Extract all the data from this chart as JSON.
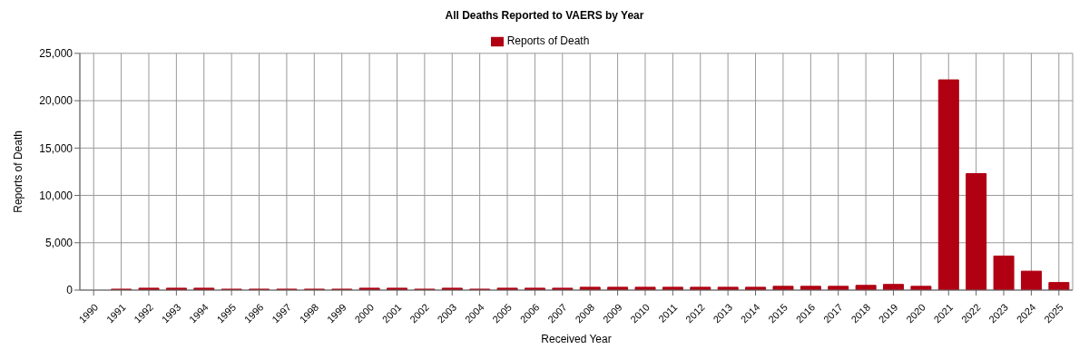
{
  "chart_data": {
    "type": "bar",
    "title": "All Deaths Reported to VAERS by Year",
    "xlabel": "Received Year",
    "ylabel": "Reports of Death",
    "categories": [
      "1990",
      "1991",
      "1992",
      "1993",
      "1994",
      "1995",
      "1996",
      "1997",
      "1998",
      "1999",
      "2000",
      "2001",
      "2002",
      "2003",
      "2004",
      "2005",
      "2006",
      "2007",
      "2008",
      "2009",
      "2010",
      "2011",
      "2012",
      "2013",
      "2014",
      "2015",
      "2016",
      "2017",
      "2018",
      "2019",
      "2020",
      "2021",
      "2022",
      "2023",
      "2024",
      "2025"
    ],
    "series": [
      {
        "name": "Reports of Death",
        "color": "#b00012",
        "values": [
          0,
          100,
          200,
          200,
          200,
          100,
          100,
          100,
          100,
          100,
          200,
          200,
          100,
          200,
          100,
          200,
          200,
          200,
          300,
          300,
          300,
          300,
          300,
          300,
          300,
          400,
          400,
          400,
          500,
          600,
          400,
          22200,
          12300,
          3600,
          2000,
          800
        ]
      }
    ],
    "ylim": [
      0,
      25000
    ],
    "yticks": [
      {
        "value": 0,
        "label": "0"
      },
      {
        "value": 5000,
        "label": "5,000"
      },
      {
        "value": 10000,
        "label": "10,000"
      },
      {
        "value": 15000,
        "label": "15,000"
      },
      {
        "value": 20000,
        "label": "20,000"
      },
      {
        "value": 25000,
        "label": "25,000"
      }
    ],
    "grid": true,
    "legend": "top"
  }
}
